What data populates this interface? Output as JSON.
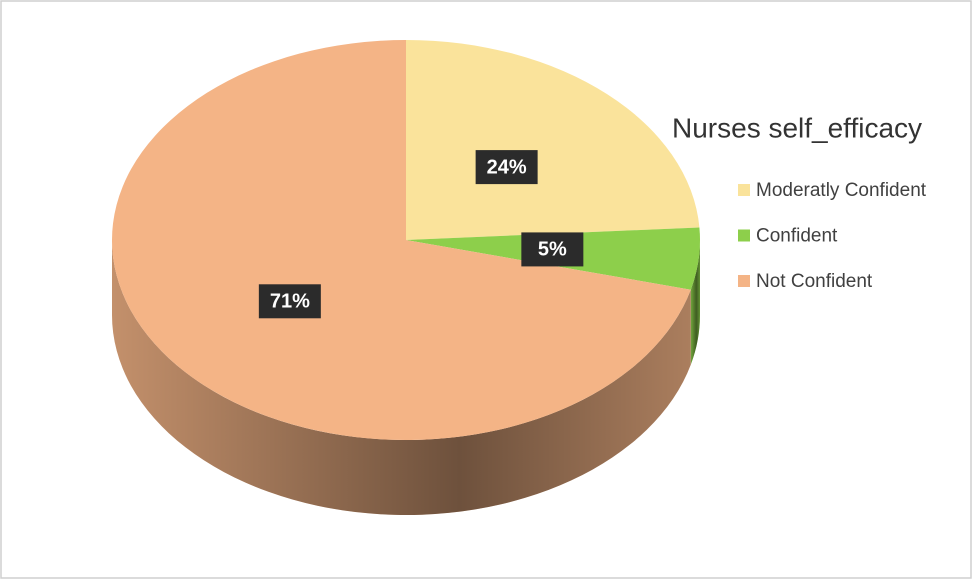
{
  "chart_data": {
    "type": "pie",
    "title": "Nurses self_efficacy",
    "categories": [
      "Moderatly Confident",
      "Confident",
      "Not Confident"
    ],
    "values": [
      24,
      5,
      71
    ],
    "value_labels": [
      "24%",
      "5%",
      "71%"
    ],
    "colors": [
      "#fae39b",
      "#8dcf4b",
      "#f4b486"
    ]
  }
}
